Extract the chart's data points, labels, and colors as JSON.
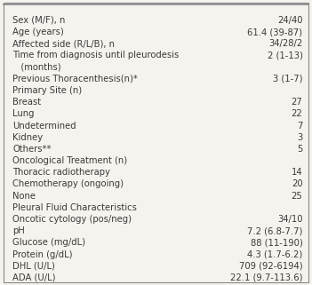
{
  "rows": [
    [
      "Sex (M/F), n",
      "24/40"
    ],
    [
      "Age (years)",
      "61.4 (39-87)"
    ],
    [
      "Affected side (R/L/B), n",
      "34/28/2"
    ],
    [
      "Time from diagnosis until pleurodesis\n   (months)",
      "2 (1-13)"
    ],
    [
      "Previous Thoracenthesis(n)*",
      "3 (1-7)"
    ],
    [
      "Primary Site (n)",
      ""
    ],
    [
      "Breast",
      "27"
    ],
    [
      "Lung",
      "22"
    ],
    [
      "Undetermined",
      "7"
    ],
    [
      "Kidney",
      "3"
    ],
    [
      "Others**",
      "5"
    ],
    [
      "Oncological Treatment (n)",
      ""
    ],
    [
      "Thoracic radiotherapy",
      "14"
    ],
    [
      "Chemotherapy (ongoing)",
      "20"
    ],
    [
      "None",
      "25"
    ],
    [
      "Pleural Fluid Characteristics",
      ""
    ],
    [
      "Oncotic cytology (pos/neg)",
      "34/10"
    ],
    [
      "pH",
      "7.2 (6.8-7.7)"
    ],
    [
      "Glucose (mg/dL)",
      "88 (11-190)"
    ],
    [
      "Protein (g/dL)",
      "4.3 (1.7-6.2)"
    ],
    [
      "DHL (U/L)",
      "709 (92-6194)"
    ],
    [
      "ADA (U/L)",
      "22.1 (9.7-113.6)"
    ]
  ],
  "header_rows": [
    5,
    11,
    15
  ],
  "bg_color": "#f5f3ee",
  "border_color": "#888888",
  "text_color": "#3a3a3a",
  "font_size": 7.2,
  "fig_width": 3.51,
  "fig_height": 3.21,
  "dpi": 100
}
